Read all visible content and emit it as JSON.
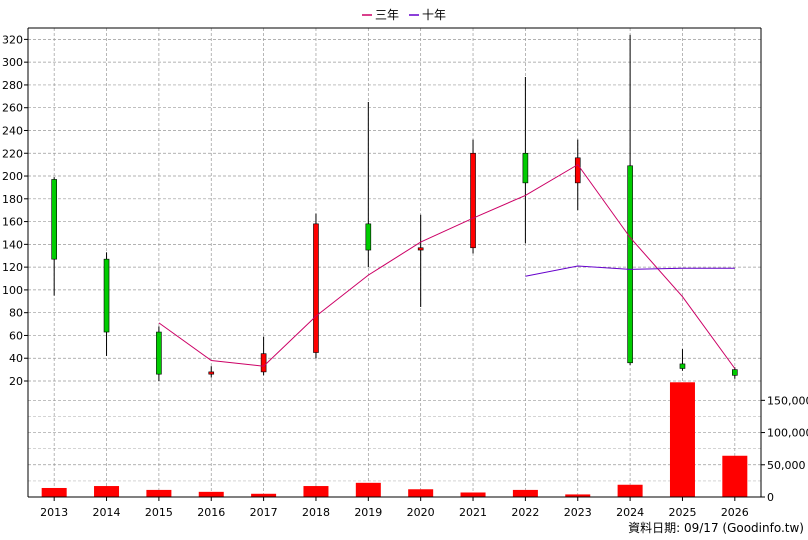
{
  "chart_data": {
    "type": "candlestick",
    "legend": {
      "placement": "top-center",
      "items": [
        {
          "label": "三年",
          "color": "#cc0066"
        },
        {
          "label": "十年",
          "color": "#6600cc"
        }
      ]
    },
    "footer": "資料日期: 09/17  (Goodinfo.tw)",
    "grid": true,
    "colors": {
      "up": "#ff0000",
      "down": "#00cc00",
      "volume": "#ff0000",
      "ma3": "#cc0066",
      "ma10": "#6600cc"
    },
    "x": [
      "2013",
      "2014",
      "2015",
      "2016",
      "2017",
      "2018",
      "2019",
      "2020",
      "2021",
      "2022",
      "2023",
      "2024",
      "2025",
      "2026"
    ],
    "price_axis": {
      "ylim": [
        20,
        330
      ],
      "ticks": [
        20,
        40,
        60,
        80,
        100,
        120,
        140,
        160,
        180,
        200,
        220,
        240,
        260,
        280,
        300,
        320
      ],
      "tick_labels": [
        "20",
        "40",
        "60",
        "80",
        "100",
        "120",
        "140",
        "160",
        "180",
        "200",
        "220",
        "240",
        "260",
        "280",
        "300",
        "320"
      ]
    },
    "volume_axis": {
      "ylim": [
        0,
        180000
      ],
      "ticks": [
        0,
        50000,
        100000,
        150000
      ],
      "tick_labels": [
        "0",
        "50,000",
        "100,000",
        "150,000"
      ]
    },
    "ohlc": [
      {
        "open": 197,
        "high": 199,
        "low": 95,
        "close": 127
      },
      {
        "open": 127,
        "high": 133,
        "low": 42,
        "close": 63
      },
      {
        "open": 63,
        "high": 68,
        "low": 20,
        "close": 26
      },
      {
        "open": 26,
        "high": 33,
        "low": 23,
        "close": 28
      },
      {
        "open": 28,
        "high": 59,
        "low": 25,
        "close": 44
      },
      {
        "open": 45,
        "high": 167,
        "low": 40,
        "close": 158
      },
      {
        "open": 158,
        "high": 265,
        "low": 120,
        "close": 135
      },
      {
        "open": 135,
        "high": 166,
        "low": 85,
        "close": 137
      },
      {
        "open": 137,
        "high": 232,
        "low": 132,
        "close": 220
      },
      {
        "open": 220,
        "high": 287,
        "low": 141,
        "close": 194
      },
      {
        "open": 194,
        "high": 232,
        "low": 170,
        "close": 216
      },
      {
        "open": 209,
        "high": 324,
        "low": 34,
        "close": 36
      },
      {
        "open": 35,
        "high": 48,
        "low": 29,
        "close": 31
      },
      {
        "open": 30,
        "high": 32,
        "low": 22,
        "close": 25
      }
    ],
    "volume": [
      14000,
      17000,
      11000,
      8000,
      5000,
      17000,
      22000,
      12000,
      7000,
      11000,
      4000,
      19000,
      178000,
      64000
    ],
    "series": [
      {
        "name": "三年",
        "values": [
          null,
          null,
          71,
          38,
          33,
          77,
          113,
          142,
          163,
          183,
          210,
          146,
          94,
          31
        ]
      },
      {
        "name": "十年",
        "values": [
          null,
          null,
          null,
          null,
          null,
          null,
          null,
          null,
          null,
          112,
          121,
          118,
          119,
          119
        ]
      }
    ]
  }
}
